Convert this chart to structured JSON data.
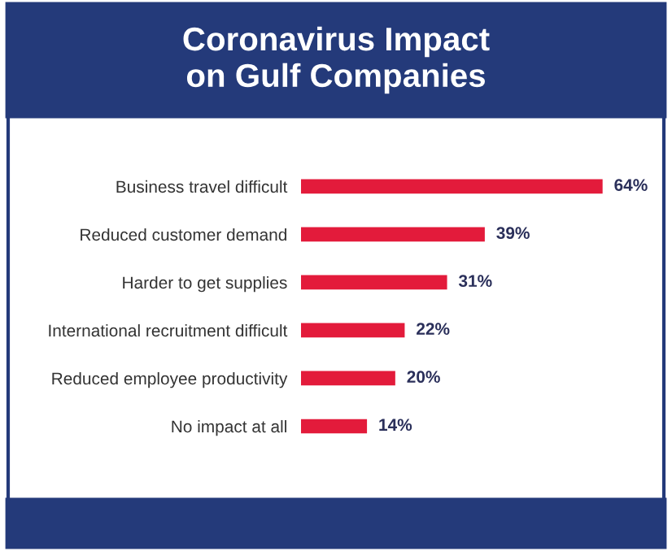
{
  "chart_data": {
    "type": "bar",
    "orientation": "horizontal",
    "title": "Coronavirus Impact\non Gulf Companies",
    "categories": [
      "Business travel difficult",
      "Reduced customer demand",
      "Harder to get supplies",
      "International recruitment difficult",
      "Reduced employee productivity",
      "No impact at all"
    ],
    "values": [
      64,
      39,
      31,
      22,
      20,
      14
    ],
    "color": "#e31b3b",
    "value_labels": [
      "64%",
      "39%",
      "31%",
      "22%",
      "20%",
      "14%"
    ],
    "grid": false,
    "legend": false
  }
}
